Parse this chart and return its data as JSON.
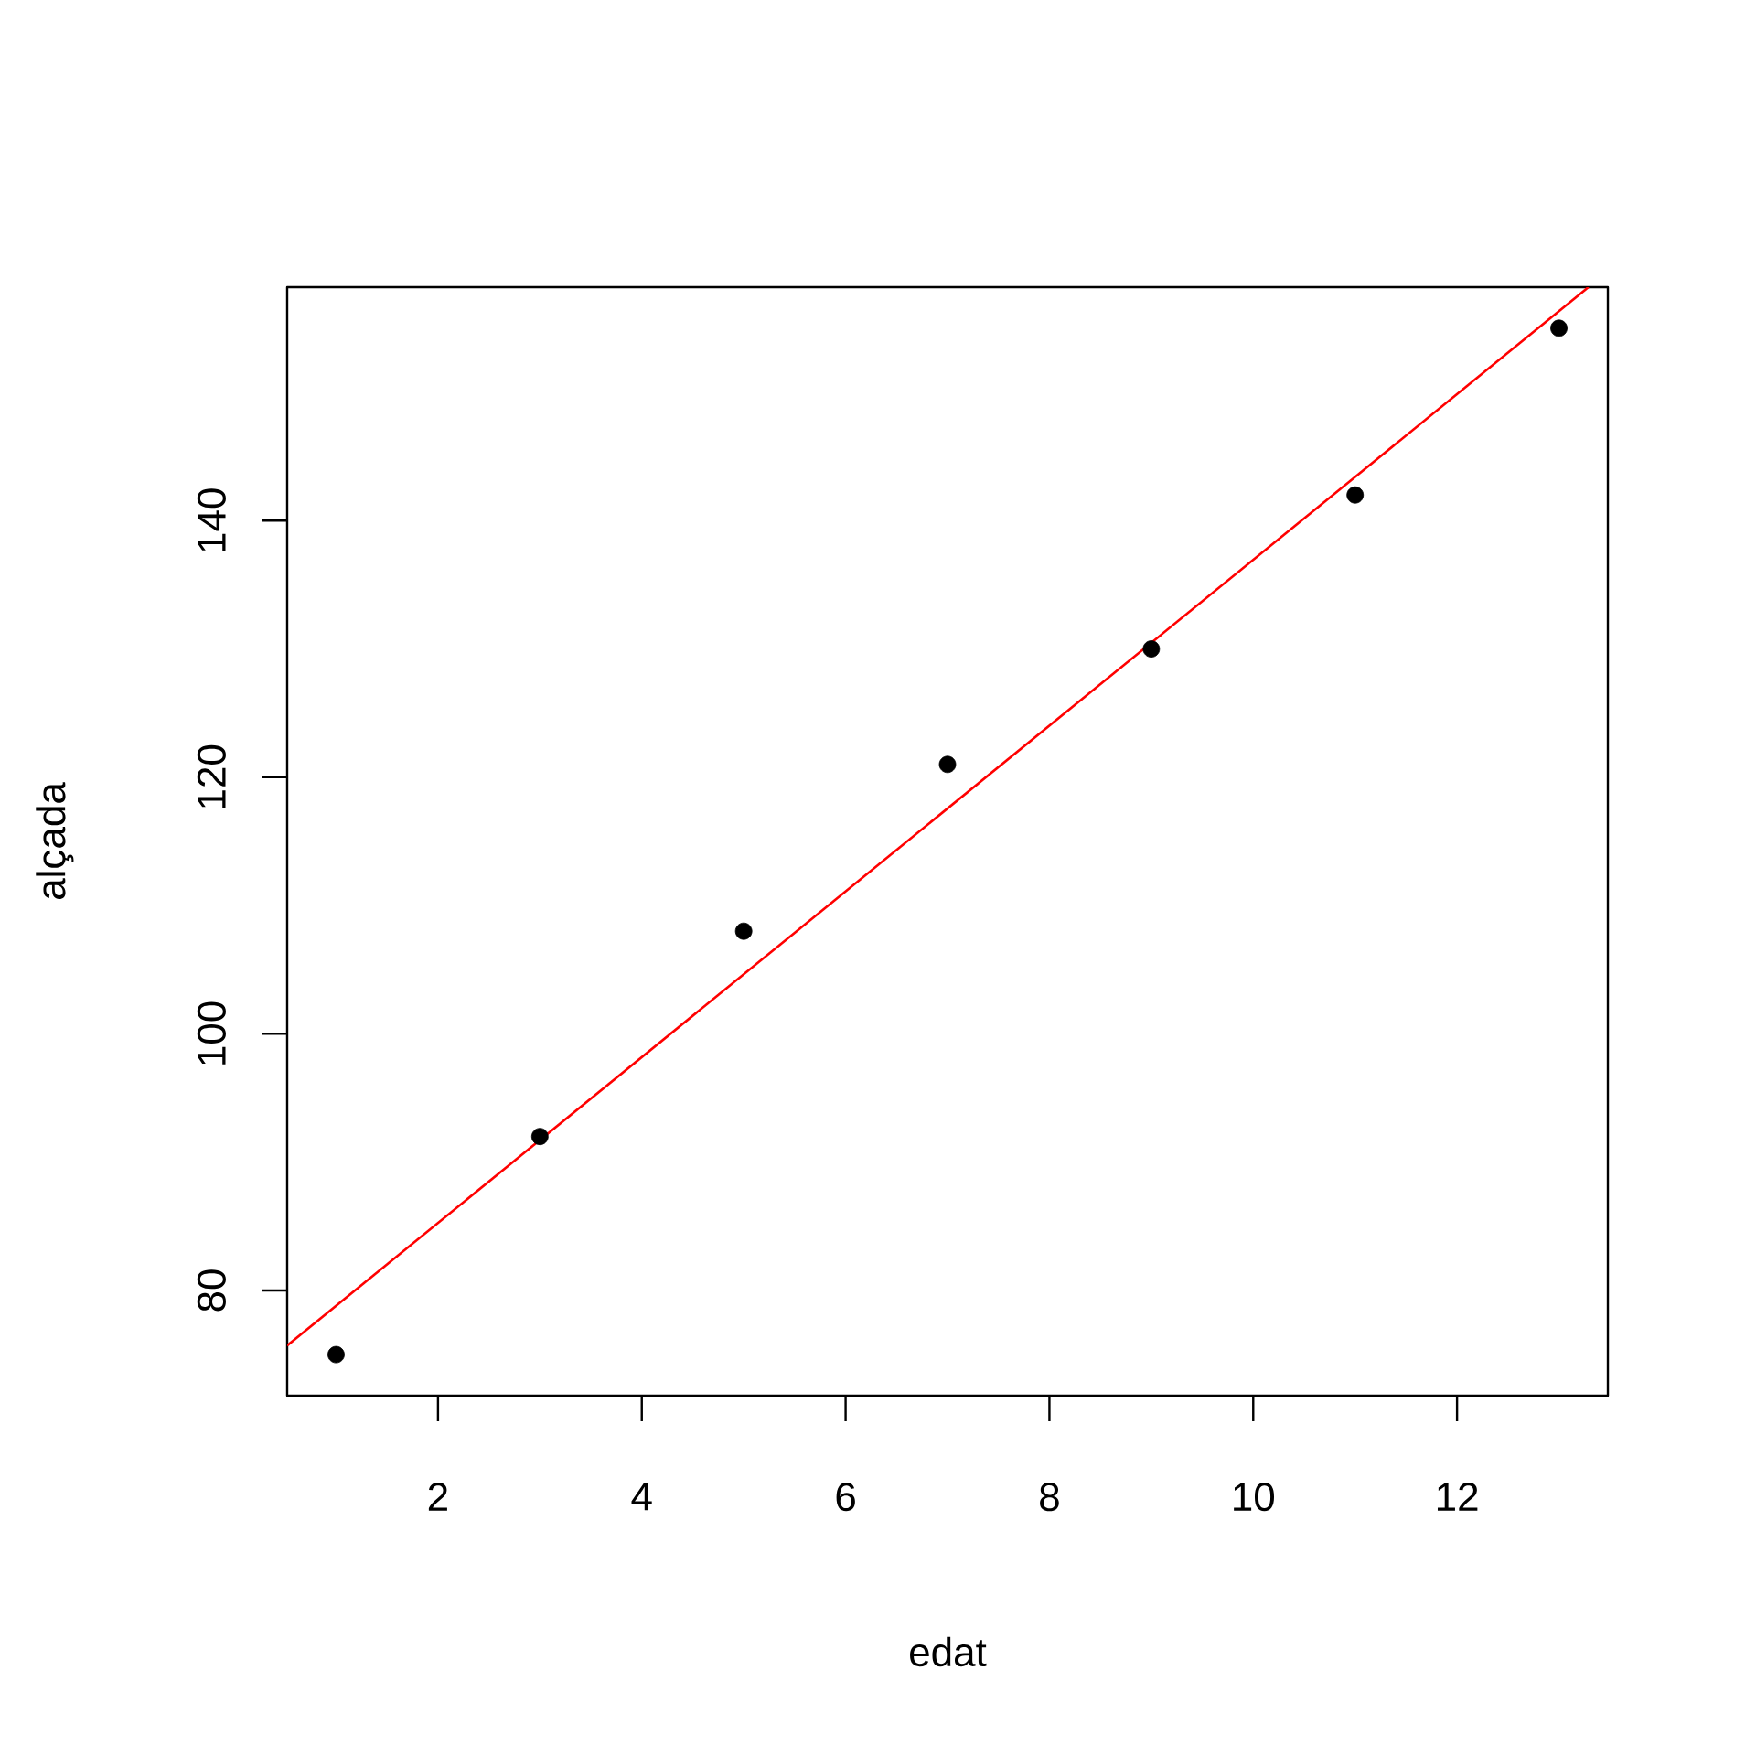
{
  "chart_data": {
    "type": "scatter",
    "xlabel": "edat",
    "ylabel": "alçada",
    "xlim": [
      0.52,
      13.48
    ],
    "ylim": [
      71.8,
      158.2
    ],
    "xticks": [
      2,
      4,
      6,
      8,
      10,
      12
    ],
    "yticks": [
      80,
      100,
      120,
      140
    ],
    "series": [
      {
        "color": "#000000",
        "marker": "circle",
        "x": [
          1,
          3,
          5,
          7,
          9,
          11,
          13
        ],
        "values": [
          75,
          92,
          108,
          121,
          130,
          142,
          155
        ]
      },
      {
        "type": "line",
        "color": "#ff0000",
        "marker": "none",
        "x": [
          0.52,
          13.29
        ],
        "values": [
          75.7,
          158.2
        ]
      }
    ]
  }
}
